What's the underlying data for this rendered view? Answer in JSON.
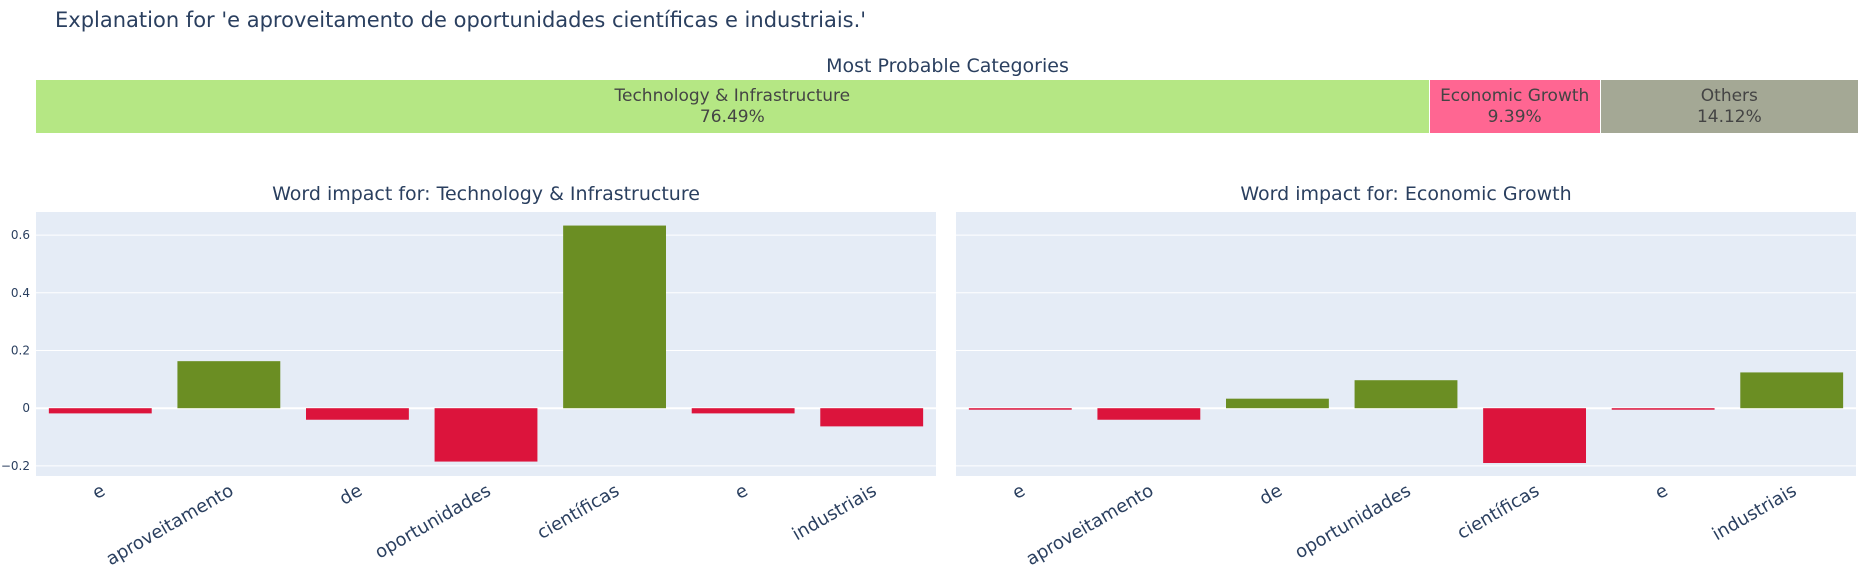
{
  "title": "Explanation for 'e aproveitamento de oportunidades científicas e industriais.'",
  "probabilities": {
    "title": "Most Probable Categories",
    "segments": [
      {
        "label": "Technology & Infrastructure",
        "percent_label": "76.49%",
        "value": 76.49,
        "color": "#b5e784"
      },
      {
        "label": "Economic Growth",
        "percent_label": "9.39%",
        "value": 9.39,
        "color": "#ff6692"
      },
      {
        "label": "Others",
        "percent_label": "14.12%",
        "value": 14.12,
        "color": "#a4a895"
      }
    ]
  },
  "colors": {
    "positive": "#6b8e23",
    "negative": "#dc143c",
    "plot_bg": "#e5ecf6",
    "grid": "#ffffff"
  },
  "chart_data": [
    {
      "type": "bar",
      "title": "Word impact for: Technology & Infrastructure",
      "categories": [
        "e",
        "aproveitamento",
        "de",
        "oportunidades",
        "científicas",
        "e",
        "industriais"
      ],
      "values": [
        -0.018,
        0.163,
        -0.04,
        -0.185,
        0.633,
        -0.018,
        -0.063
      ],
      "ylim": [
        -0.235,
        0.68
      ],
      "yticks": [
        -0.2,
        0,
        0.2,
        0.4,
        0.6
      ],
      "ytick_labels": [
        "−0.2",
        "0",
        "0.2",
        "0.4",
        "0.6"
      ],
      "grid": true
    },
    {
      "type": "bar",
      "title": "Word impact for: Economic Growth",
      "categories": [
        "e",
        "aproveitamento",
        "de",
        "oportunidades",
        "científicas",
        "e",
        "industriais"
      ],
      "values": [
        -0.003,
        -0.04,
        0.033,
        0.097,
        -0.19,
        -0.003,
        0.124
      ],
      "ylim": [
        -0.235,
        0.68
      ],
      "yticks": [
        -0.2,
        0,
        0.2,
        0.4,
        0.6
      ],
      "grid": true
    }
  ]
}
